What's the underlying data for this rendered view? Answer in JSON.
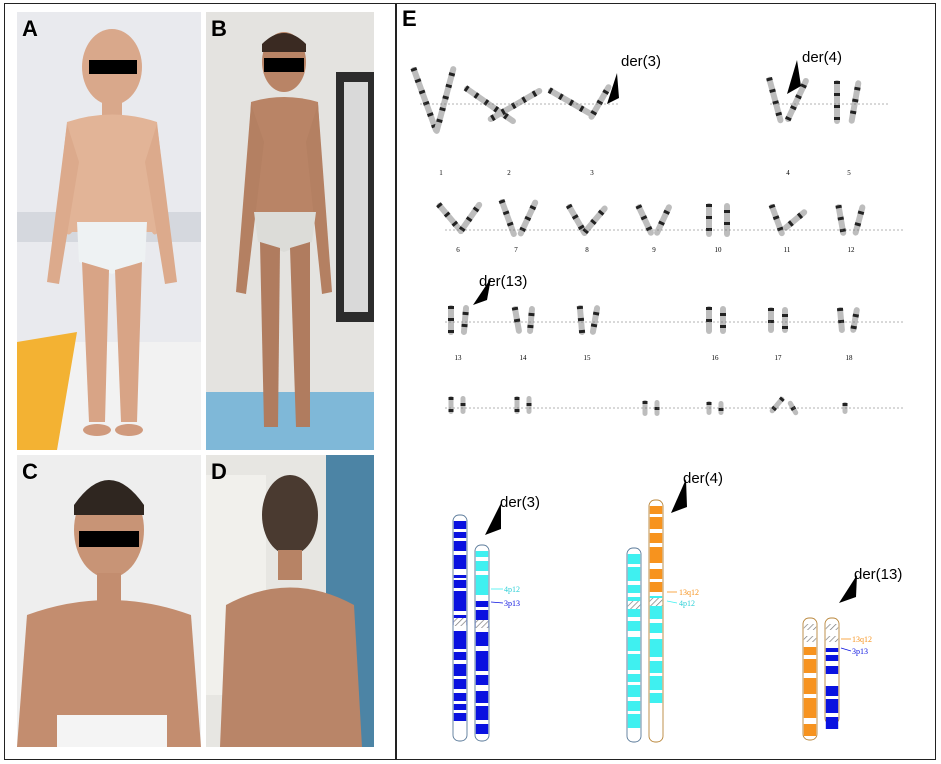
{
  "panels": {
    "A": "A",
    "B": "B",
    "C": "C",
    "D": "D",
    "E": "E"
  },
  "karyotype": {
    "numbers": [
      "1",
      "2",
      "3",
      "4",
      "5",
      "6",
      "7",
      "8",
      "9",
      "10",
      "11",
      "12",
      "13",
      "14",
      "15",
      "16",
      "17",
      "18"
    ],
    "arrows": [
      "der(3)",
      "der(4)",
      "der(13)"
    ]
  },
  "ideogram": {
    "arrows": [
      "der(3)",
      "der(4)",
      "der(13)"
    ],
    "band_labels": {
      "der3_4p12": "4p12",
      "der3_3p13": "3p13",
      "der4_13q12": "13q12",
      "der4_4p12": "4p12",
      "der13_13q12": "13q12",
      "der13_3p13": "3p13"
    }
  },
  "colors": {
    "chr3": "#0a12e0",
    "chr4": "#3ff0f0",
    "chr13": "#f7931e",
    "hatch": "#b9863a"
  }
}
